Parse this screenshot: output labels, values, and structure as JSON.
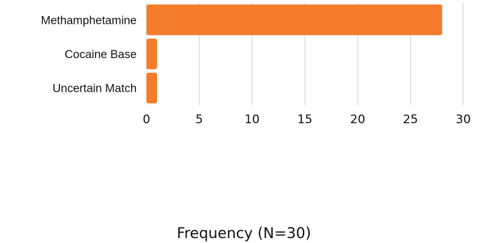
{
  "chart_data": {
    "type": "bar",
    "orientation": "horizontal",
    "categories": [
      "Methamphetamine",
      "Cocaine Base",
      "Uncertain Match"
    ],
    "values": [
      28,
      1,
      1
    ],
    "title": "",
    "xlabel": "Frequency (N=30)",
    "ylabel": "",
    "xlim": [
      0,
      30
    ],
    "xticks": [
      "0",
      "5",
      "10",
      "15",
      "20",
      "25",
      "30"
    ],
    "grid": "vertical",
    "legend": "none",
    "bar_color": "#F47C2B",
    "grid_color": "#D0D0D0"
  }
}
